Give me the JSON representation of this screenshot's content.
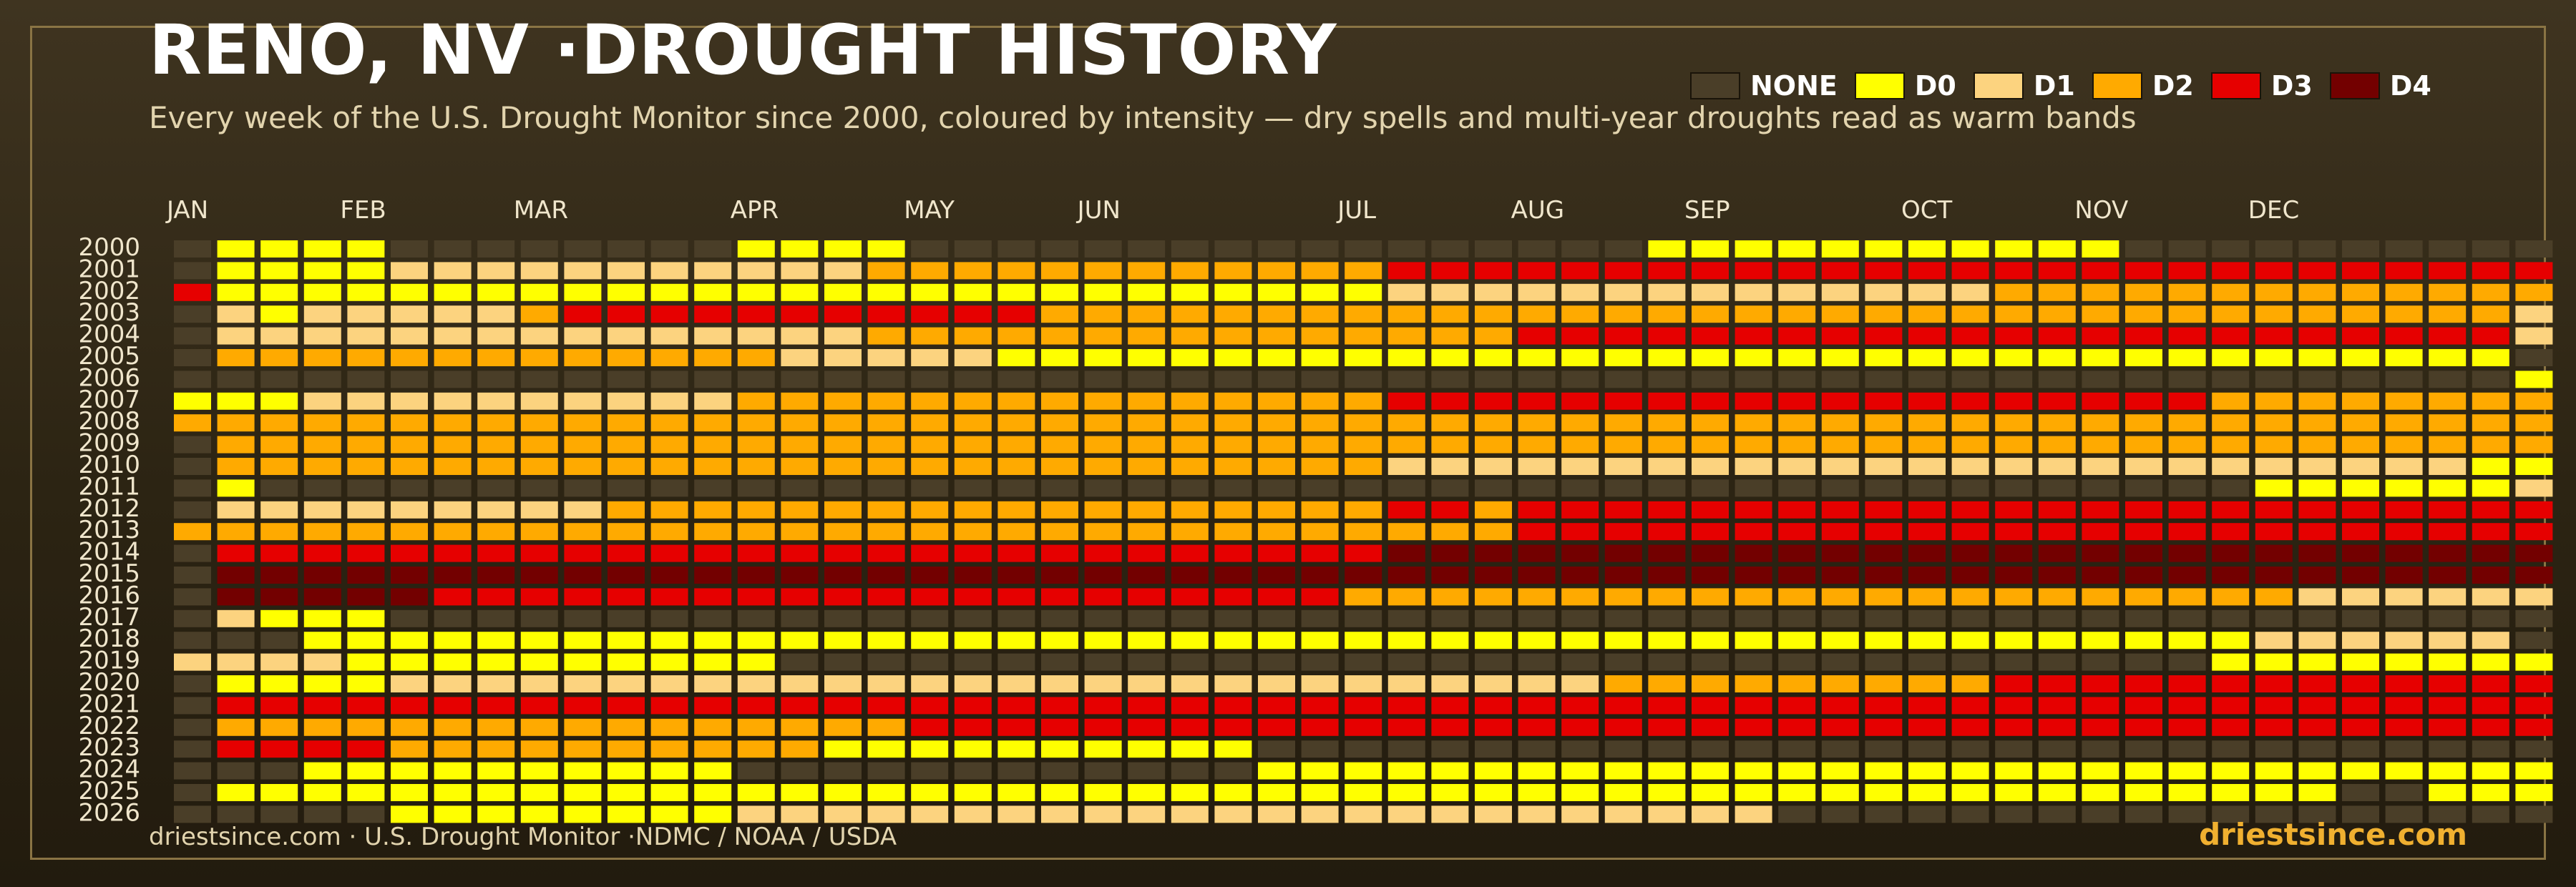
{
  "title": "RENO, NV ·DROUGHT HISTORY",
  "subtitle": "Every week of the U.S. Drought Monitor since 2000, coloured by intensity — dry spells and multi-year droughts read as warm bands",
  "footer": {
    "source": "driestsince.com  · U.S. Drought Monitor ·NDMC / NOAA / USDA",
    "site": "driestsince.com"
  },
  "legend": [
    {
      "label": "NONE",
      "color": "#4a3e28"
    },
    {
      "label": "D0",
      "color": "#ffff00"
    },
    {
      "label": "D1",
      "color": "#fcd37f"
    },
    {
      "label": "D2",
      "color": "#ffaa00"
    },
    {
      "label": "D3",
      "color": "#e60000"
    },
    {
      "label": "D4",
      "color": "#730000"
    }
  ],
  "chart_data": {
    "type": "heatmap",
    "x_tick_labels": [
      "JAN",
      "FEB",
      "MAR",
      "APR",
      "MAY",
      "JUN",
      "JUL",
      "AUG",
      "SEP",
      "OCT",
      "NOV",
      "DEC"
    ],
    "x_tick_weeks": [
      0,
      4,
      8,
      13,
      17,
      21,
      27,
      31,
      35,
      40,
      44,
      48
    ],
    "years": [
      "2000",
      "2001",
      "2002",
      "2003",
      "2004",
      "2005",
      "2006",
      "2007",
      "2008",
      "2009",
      "2010",
      "2011",
      "2012",
      "2013",
      "2014",
      "2015",
      "2016",
      "2017",
      "2018",
      "2019",
      "2020",
      "2021",
      "2022",
      "2023",
      "2024",
      "2025",
      "2026"
    ],
    "levels": [
      "NONE",
      "D0",
      "D1",
      "D2",
      "D3",
      "D4"
    ],
    "grid": [
      "0111100000000111100000000000000000111111111110000000000",
      "0111122222222222333333333333444444444444444444444444444",
      "4111111111111111111111111111222222222222223333333333333",
      "0212222234444444444433333333333333333333333333333333332",
      "0222222222222222333333333333333444444444444444444444442",
      "0333333333333322222111111111111111111111111111111111110",
      "0000000000000000000000000000000000000000000000000000001",
      "1112222222222333333333333333444444444444444444433333333",
      "3333333333333333333333333333333333333333333333333333333",
      "0333333333333333333333333333333333333333333333333333333",
      "0333333333333333333333333333222222222222222222222222211",
      "0100000000000000000000000000000000000000000000001111112",
      "0222222222333333333333333333443444444444444444444444444",
      "3333333333333333333333333333333444444444444444444444444",
      "0444444444444444444444444444555555555555555555555555555",
      "0555555555555555555555555555555555555555555555555555555",
      "0555554444444444444444444443333333333333333333333222222",
      "0211100000000000000000000000000000000000000000000000000",
      "0001111111111111111111111111111111111111111111112222220",
      "2222111111111100000000000000000000000000000000011111111",
      "0111122222222222222222222222222223333333334444444444444",
      "0444444444444444444444444444444444444444444444444444444",
      "0333333333333333344444444444444444444444444444444444444",
      "0444433333333331111111111000000000000000000000000000000",
      "0001111111111000000000000111111111111111111111111111111",
      "0111111111111111111111111111111111111111111111111100111",
      "0000011111111222222222222222222222222000000000000000000"
    ]
  }
}
